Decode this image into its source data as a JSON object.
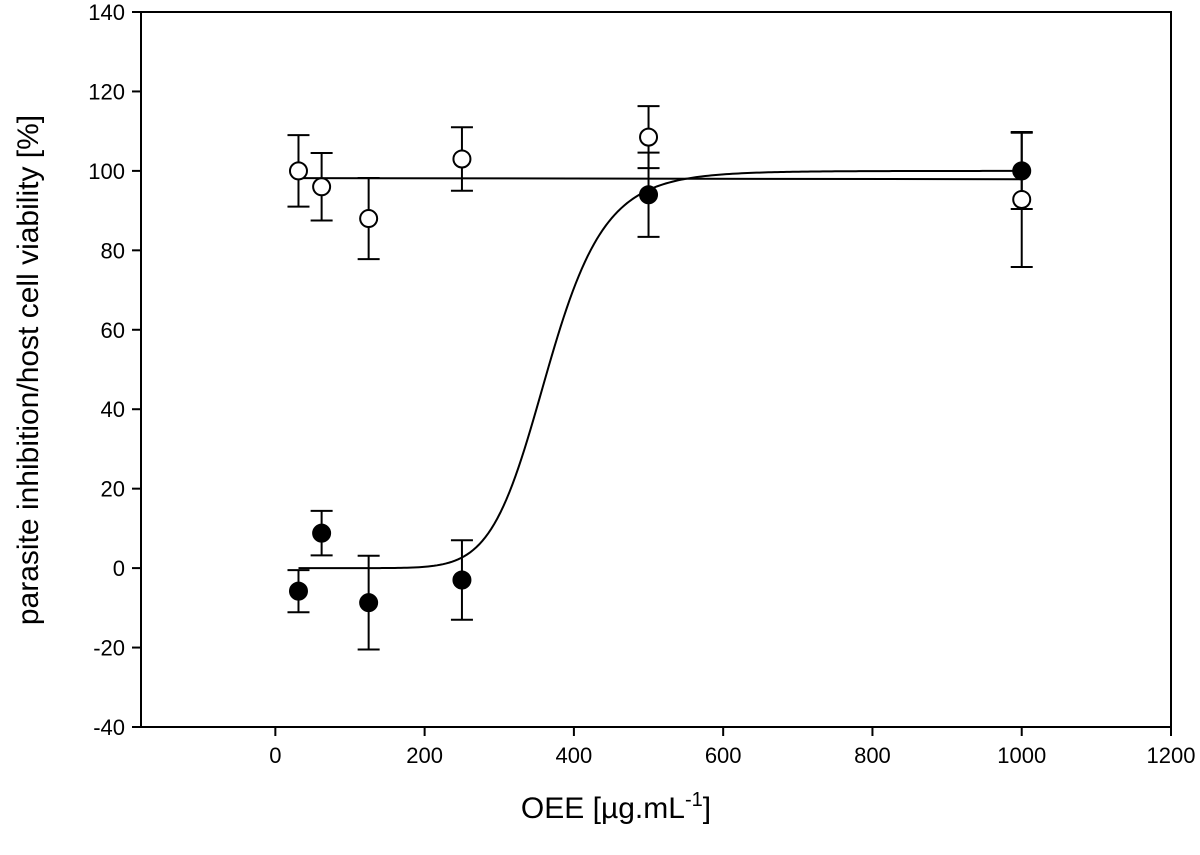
{
  "chart_data": {
    "type": "scatter",
    "title": "",
    "xlabel": "OEE [µg.mL",
    "xlabel_sup": "-1",
    "xlabel_end": "]",
    "ylabel": "parasite inhibition/host cell viability [%]",
    "xlim": [
      -180,
      1200
    ],
    "ylim": [
      -40,
      140
    ],
    "xticks": [
      0,
      200,
      400,
      600,
      800,
      1000,
      1200
    ],
    "yticks": [
      -40,
      -20,
      0,
      20,
      40,
      60,
      80,
      100,
      120,
      140
    ],
    "grid": false,
    "series": [
      {
        "marker": "open-circle",
        "color": "#ffffff",
        "points": [
          {
            "x": 31,
            "y": 100,
            "err": 9
          },
          {
            "x": 62,
            "y": 96,
            "err": 8.5
          },
          {
            "x": 125,
            "y": 88,
            "err": 10.2
          },
          {
            "x": 250,
            "y": 103,
            "err": 8
          },
          {
            "x": 500,
            "y": 108.5,
            "err": 7.8
          },
          {
            "x": 1000,
            "y": 92.8,
            "err": 17
          }
        ],
        "fit": {
          "model": "linear",
          "y0": 98.2,
          "slope": -0.0003
        }
      },
      {
        "marker": "filled-circle",
        "color": "#000000",
        "points": [
          {
            "x": 31,
            "y": -5.8,
            "err": 5.3
          },
          {
            "x": 62,
            "y": 8.8,
            "err": 5.6
          },
          {
            "x": 125,
            "y": -8.7,
            "err": 11.8
          },
          {
            "x": 250,
            "y": -3,
            "err": 10
          },
          {
            "x": 500,
            "y": 94,
            "err": 10.6
          },
          {
            "x": 1000,
            "y": 100,
            "err": 9.6
          }
        ],
        "fit": {
          "model": "logistic",
          "bottom": 0,
          "top": 100,
          "ec50": 365,
          "hill": 9.5,
          "x_start": 31,
          "x_end": 1000
        }
      }
    ]
  }
}
